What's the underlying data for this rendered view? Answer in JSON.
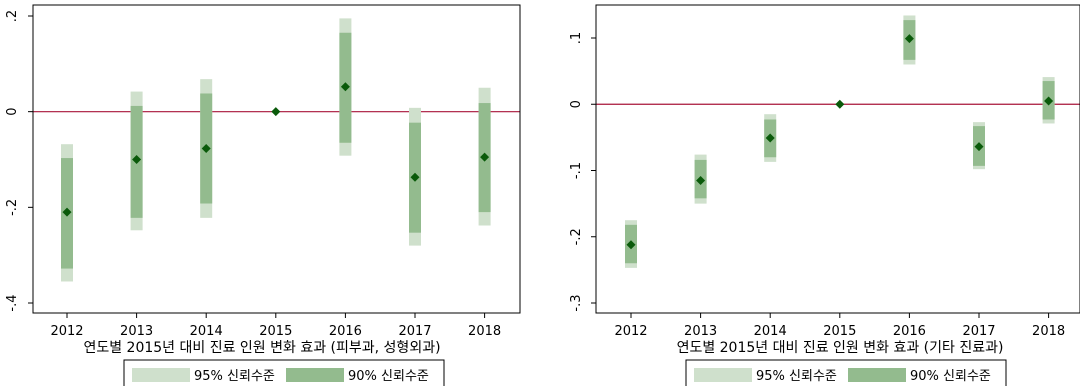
{
  "colors": {
    "ci95": "#cfe0cc",
    "ci90": "#93bb8e",
    "point": "#0a5a0a",
    "zeroline": "#a8143a",
    "frame": "#000000"
  },
  "legend": {
    "ci95_label": "95% 신뢰수준",
    "ci90_label": "90% 신뢰수준"
  },
  "chart_data": [
    {
      "type": "errorbar",
      "title": "연도별 2015년 대비 진료 인원 변화 효과 (피부과, 성형외과)",
      "x": [
        "2012",
        "2013",
        "2014",
        "2015",
        "2016",
        "2017",
        "2018"
      ],
      "y_ticks": [
        0.2,
        0,
        -0.2,
        -0.4
      ],
      "y_tick_labels": [
        ".2",
        "0",
        "-.2",
        "-.4"
      ],
      "ylim": [
        -0.41,
        0.21
      ],
      "reference_line": 0,
      "series": [
        {
          "estimate": [
            -0.21,
            -0.1,
            -0.077,
            0,
            0.052,
            -0.137,
            -0.095
          ],
          "ci90": [
            [
              -0.328,
              -0.097
            ],
            [
              -0.222,
              0.012
            ],
            [
              -0.192,
              0.038
            ],
            [
              0,
              0
            ],
            [
              -0.065,
              0.165
            ],
            [
              -0.253,
              -0.023
            ],
            [
              -0.21,
              0.018
            ]
          ],
          "ci95": [
            [
              -0.355,
              -0.068
            ],
            [
              -0.248,
              0.042
            ],
            [
              -0.222,
              0.068
            ],
            [
              0,
              0
            ],
            [
              -0.092,
              0.195
            ],
            [
              -0.28,
              0.008
            ],
            [
              -0.238,
              0.05
            ]
          ]
        }
      ]
    },
    {
      "type": "errorbar",
      "title": "연도별 2015년 대비 진료 인원 변화 효과 (기타 진료과)",
      "x": [
        "2012",
        "2013",
        "2014",
        "2015",
        "2016",
        "2017",
        "2018"
      ],
      "y_ticks": [
        0.1,
        0,
        -0.1,
        -0.2,
        -0.3
      ],
      "y_tick_labels": [
        ".1",
        "0",
        "-.1",
        "-.2",
        "-.3"
      ],
      "ylim": [
        -0.31,
        0.15
      ],
      "reference_line": 0,
      "series": [
        {
          "estimate": [
            -0.212,
            -0.115,
            -0.051,
            0,
            0.099,
            -0.064,
            0.005
          ],
          "ci90": [
            [
              -0.24,
              -0.182
            ],
            [
              -0.142,
              -0.084
            ],
            [
              -0.08,
              -0.023
            ],
            [
              0,
              0
            ],
            [
              0.067,
              0.127
            ],
            [
              -0.093,
              -0.033
            ],
            [
              -0.023,
              0.035
            ]
          ],
          "ci95": [
            [
              -0.247,
              -0.175
            ],
            [
              -0.15,
              -0.076
            ],
            [
              -0.087,
              -0.015
            ],
            [
              0,
              0
            ],
            [
              0.06,
              0.134
            ],
            [
              -0.098,
              -0.027
            ],
            [
              -0.029,
              0.041
            ]
          ]
        }
      ]
    }
  ]
}
